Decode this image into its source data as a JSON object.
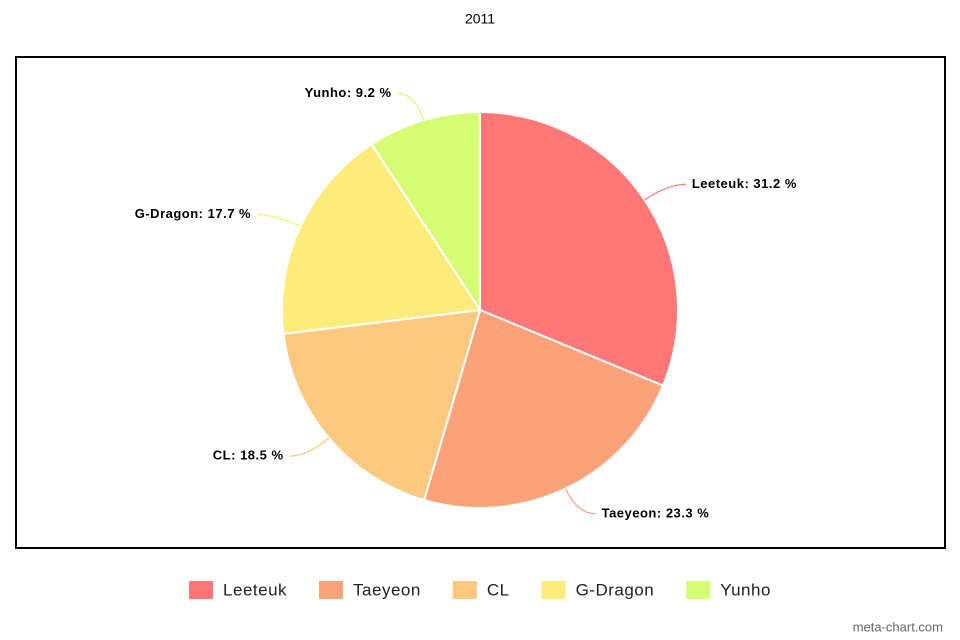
{
  "chart_data": {
    "type": "pie",
    "title": "2011",
    "categories": [
      "Leeteuk",
      "Taeyeon",
      "CL",
      "G-Dragon",
      "Yunho"
    ],
    "values": [
      31.2,
      23.3,
      18.5,
      17.7,
      9.2
    ],
    "value_labels": [
      "Leeteuk: 31.2 %",
      "Taeyeon: 23.3 %",
      "CL: 18.5 %",
      "G-Dragon: 17.7 %",
      "Yunho: 9.2 %"
    ],
    "colors": [
      "#ff7777",
      "#fca27a",
      "#fcc97e",
      "#fdeb7b",
      "#d6fb74"
    ],
    "legend": "bottom",
    "watermark": "meta-chart.com"
  }
}
